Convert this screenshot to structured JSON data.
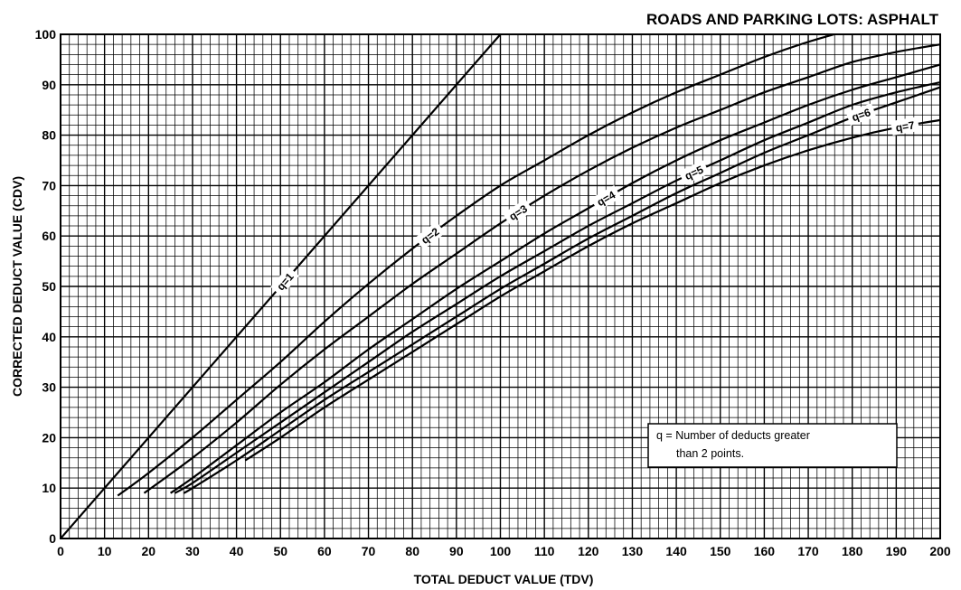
{
  "chart_data": {
    "type": "line",
    "title": "ROADS AND PARKING LOTS:  ASPHALT",
    "xlabel": "TOTAL DEDUCT VALUE (TDV)",
    "ylabel": "CORRECTED DEDUCT VALUE (CDV)",
    "xlim": [
      0,
      200
    ],
    "ylim": [
      0,
      100
    ],
    "grid": true,
    "x_ticks": [
      "0",
      "10",
      "20",
      "30",
      "40",
      "50",
      "60",
      "70",
      "80",
      "90",
      "100",
      "110",
      "120",
      "130",
      "140",
      "150",
      "160",
      "170",
      "180",
      "190",
      "200"
    ],
    "y_ticks": [
      "0",
      "10",
      "20",
      "30",
      "40",
      "50",
      "60",
      "70",
      "80",
      "90",
      "100"
    ],
    "note": {
      "line1": "q = Number of deducts greater",
      "line2": "than 2 points."
    },
    "series": [
      {
        "name": "q=1",
        "points": [
          [
            0,
            0
          ],
          [
            100,
            100
          ]
        ]
      },
      {
        "name": "q=2",
        "points": [
          [
            13,
            8.5
          ],
          [
            20,
            13
          ],
          [
            30,
            20
          ],
          [
            40,
            27.5
          ],
          [
            50,
            35
          ],
          [
            60,
            43
          ],
          [
            70,
            50.5
          ],
          [
            80,
            57.5
          ],
          [
            90,
            64
          ],
          [
            100,
            70
          ],
          [
            110,
            75
          ],
          [
            120,
            80
          ],
          [
            130,
            84.5
          ],
          [
            140,
            88.5
          ],
          [
            150,
            92
          ],
          [
            160,
            95.5
          ],
          [
            170,
            98.5
          ],
          [
            180,
            101
          ]
        ]
      },
      {
        "name": "q=3",
        "points": [
          [
            19,
            9
          ],
          [
            30,
            16
          ],
          [
            40,
            23
          ],
          [
            50,
            30.5
          ],
          [
            60,
            37.5
          ],
          [
            70,
            44
          ],
          [
            80,
            50.5
          ],
          [
            90,
            56.5
          ],
          [
            100,
            62.5
          ],
          [
            110,
            68
          ],
          [
            120,
            73
          ],
          [
            130,
            77.5
          ],
          [
            140,
            81.5
          ],
          [
            150,
            85
          ],
          [
            160,
            88.5
          ],
          [
            170,
            91.5
          ],
          [
            180,
            94.5
          ],
          [
            190,
            96.5
          ],
          [
            200,
            98
          ]
        ]
      },
      {
        "name": "q=4",
        "points": [
          [
            25,
            9
          ],
          [
            30,
            12
          ],
          [
            40,
            18.5
          ],
          [
            50,
            25
          ],
          [
            60,
            31
          ],
          [
            70,
            37.5
          ],
          [
            80,
            43.5
          ],
          [
            90,
            49.5
          ],
          [
            100,
            55
          ],
          [
            110,
            60.5
          ],
          [
            120,
            65.5
          ],
          [
            130,
            70.5
          ],
          [
            140,
            75
          ],
          [
            150,
            79
          ],
          [
            160,
            82.5
          ],
          [
            170,
            86
          ],
          [
            180,
            89
          ],
          [
            190,
            91.5
          ],
          [
            200,
            94
          ]
        ]
      },
      {
        "name": "q=5",
        "points": [
          [
            26,
            9
          ],
          [
            30,
            11
          ],
          [
            40,
            17
          ],
          [
            50,
            23
          ],
          [
            60,
            29
          ],
          [
            70,
            35
          ],
          [
            80,
            41
          ],
          [
            90,
            46.5
          ],
          [
            100,
            52
          ],
          [
            110,
            57
          ],
          [
            120,
            62
          ],
          [
            130,
            66.5
          ],
          [
            140,
            71
          ],
          [
            150,
            75
          ],
          [
            160,
            79
          ],
          [
            170,
            82.5
          ],
          [
            180,
            86
          ],
          [
            190,
            88.5
          ],
          [
            200,
            90.5
          ]
        ]
      },
      {
        "name": "q=6",
        "points": [
          [
            28,
            9
          ],
          [
            30,
            10
          ],
          [
            40,
            15.5
          ],
          [
            50,
            21.5
          ],
          [
            60,
            27.5
          ],
          [
            70,
            33
          ],
          [
            80,
            38.5
          ],
          [
            90,
            44
          ],
          [
            100,
            49.5
          ],
          [
            110,
            54.5
          ],
          [
            120,
            59.5
          ],
          [
            130,
            64
          ],
          [
            140,
            68.5
          ],
          [
            150,
            72.5
          ],
          [
            160,
            76.5
          ],
          [
            170,
            80
          ],
          [
            180,
            83.5
          ],
          [
            190,
            86.5
          ],
          [
            200,
            89.5
          ]
        ]
      },
      {
        "name": "q=7",
        "points": [
          [
            42,
            15.5
          ],
          [
            50,
            20
          ],
          [
            60,
            26
          ],
          [
            70,
            31.5
          ],
          [
            80,
            37
          ],
          [
            90,
            42.5
          ],
          [
            100,
            48
          ],
          [
            110,
            53
          ],
          [
            120,
            58
          ],
          [
            130,
            62.5
          ],
          [
            140,
            66.5
          ],
          [
            150,
            70.5
          ],
          [
            160,
            74
          ],
          [
            170,
            77
          ],
          [
            180,
            79.5
          ],
          [
            190,
            81.5
          ],
          [
            200,
            83
          ]
        ]
      }
    ]
  }
}
